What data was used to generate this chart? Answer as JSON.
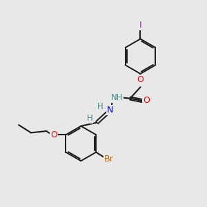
{
  "background_color": "#e8e8e8",
  "bond_color": "#1a1a1a",
  "atom_colors": {
    "O": "#ff0000",
    "N": "#0000cd",
    "NH": "#4a8888",
    "H": "#4a8888",
    "Br": "#cc6600",
    "I": "#cc00cc"
  },
  "figsize": [
    3.0,
    3.0
  ],
  "dpi": 100
}
